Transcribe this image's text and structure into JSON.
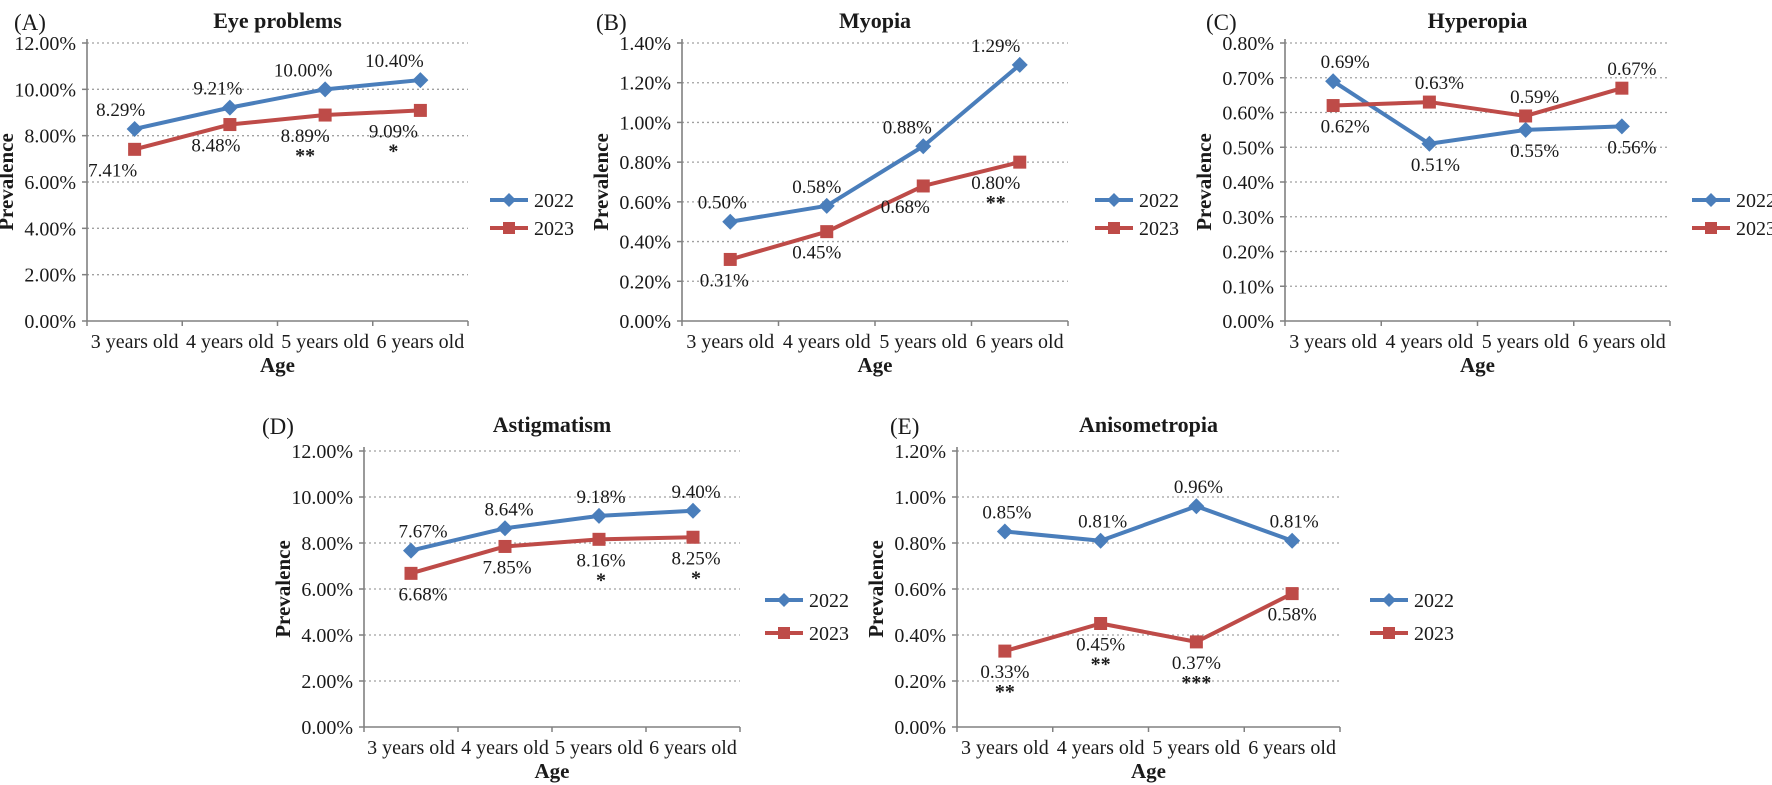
{
  "figure": {
    "background": "#ffffff",
    "axis_color": "#808080",
    "grid_color": "#a0a0a0",
    "text_color": "#1a1a1a",
    "legend_labels": [
      "2022",
      "2023"
    ],
    "series_colors": [
      "#4A7EBB",
      "#BE4B48"
    ]
  },
  "chart_data": [
    {
      "id": "A",
      "panel_label": "(A)",
      "title": "Eye problems",
      "type": "line",
      "xlabel": "Age",
      "ylabel": "Prevalence",
      "categories": [
        "3 years old",
        "4 years old",
        "5 years old",
        "6 years old"
      ],
      "ylim": [
        0,
        12
      ],
      "yticks": [
        "0.00%",
        "2.00%",
        "4.00%",
        "6.00%",
        "8.00%",
        "10.00%",
        "12.00%"
      ],
      "grid": "horizontal-dashed",
      "legend_position": "right-middle",
      "series": [
        {
          "name": "2022",
          "color": "#4A7EBB",
          "marker": "diamond",
          "values": [
            8.29,
            9.21,
            10.0,
            10.4
          ],
          "labels": [
            "8.29%",
            "9.21%",
            "10.00%",
            "10.40%"
          ],
          "label_side": [
            "above",
            "above",
            "above",
            "above"
          ],
          "asterisks": [
            "",
            "",
            "",
            ""
          ],
          "label_dx": [
            -14,
            -12,
            -22,
            -26
          ]
        },
        {
          "name": "2023",
          "color": "#BE4B48",
          "marker": "square",
          "values": [
            7.41,
            8.48,
            8.89,
            9.09
          ],
          "labels": [
            "7.41%",
            "8.48%",
            "8.89%",
            "9.09%"
          ],
          "label_side": [
            "below",
            "below",
            "below",
            "below"
          ],
          "asterisks": [
            "",
            "",
            "**",
            "*"
          ],
          "label_dx": [
            -22,
            -14,
            -20,
            -27
          ]
        }
      ]
    },
    {
      "id": "B",
      "panel_label": "(B)",
      "title": "Myopia",
      "type": "line",
      "xlabel": "Age",
      "ylabel": "Prevalence",
      "categories": [
        "3 years old",
        "4 years old",
        "5 years old",
        "6 years old"
      ],
      "ylim": [
        0,
        1.4
      ],
      "yticks": [
        "0.00%",
        "0.20%",
        "0.40%",
        "0.60%",
        "0.80%",
        "1.00%",
        "1.20%",
        "1.40%"
      ],
      "grid": "horizontal-dashed",
      "legend_position": "right-middle",
      "series": [
        {
          "name": "2022",
          "color": "#4A7EBB",
          "marker": "diamond",
          "values": [
            0.5,
            0.58,
            0.88,
            1.29
          ],
          "labels": [
            "0.50%",
            "0.58%",
            "0.88%",
            "1.29%"
          ],
          "label_side": [
            "above",
            "above",
            "above",
            "above"
          ],
          "asterisks": [
            "",
            "",
            "",
            ""
          ],
          "label_dx": [
            -8,
            -10,
            -16,
            -24
          ]
        },
        {
          "name": "2023",
          "color": "#BE4B48",
          "marker": "square",
          "values": [
            0.31,
            0.45,
            0.68,
            0.8
          ],
          "labels": [
            "0.31%",
            "0.45%",
            "0.68%",
            "0.80%"
          ],
          "label_side": [
            "below",
            "below",
            "below",
            "below"
          ],
          "asterisks": [
            "",
            "",
            "",
            "**"
          ],
          "label_dx": [
            -6,
            -10,
            -18,
            -24
          ]
        }
      ]
    },
    {
      "id": "C",
      "panel_label": "(C)",
      "title": "Hyperopia",
      "type": "line",
      "xlabel": "Age",
      "ylabel": "Prevalence",
      "categories": [
        "3 years old",
        "4 years old",
        "5 years old",
        "6 years old"
      ],
      "ylim": [
        0,
        0.8
      ],
      "yticks": [
        "0.00%",
        "0.10%",
        "0.20%",
        "0.30%",
        "0.40%",
        "0.50%",
        "0.60%",
        "0.70%",
        "0.80%"
      ],
      "grid": "horizontal-dashed",
      "legend_position": "right-middle",
      "series": [
        {
          "name": "2022",
          "color": "#4A7EBB",
          "marker": "diamond",
          "values": [
            0.69,
            0.51,
            0.55,
            0.56
          ],
          "labels": [
            "0.69%",
            "0.51%",
            "0.55%",
            "0.56%"
          ],
          "label_side": [
            "above",
            "below",
            "below",
            "below"
          ],
          "asterisks": [
            "",
            "",
            "",
            ""
          ],
          "label_dx": [
            12,
            6,
            9,
            10
          ]
        },
        {
          "name": "2023",
          "color": "#BE4B48",
          "marker": "square",
          "values": [
            0.62,
            0.63,
            0.59,
            0.67
          ],
          "labels": [
            "0.62%",
            "0.63%",
            "0.59%",
            "0.67%"
          ],
          "label_side": [
            "below",
            "above",
            "above",
            "above"
          ],
          "asterisks": [
            "",
            "",
            "",
            ""
          ],
          "label_dx": [
            12,
            10,
            9,
            10
          ]
        }
      ]
    },
    {
      "id": "D",
      "panel_label": "(D)",
      "title": "Astigmatism",
      "type": "line",
      "xlabel": "Age",
      "ylabel": "Prevalence",
      "categories": [
        "3 years old",
        "4 years old",
        "5 years old",
        "6 years old"
      ],
      "ylim": [
        0,
        12
      ],
      "yticks": [
        "0.00%",
        "2.00%",
        "4.00%",
        "6.00%",
        "8.00%",
        "10.00%",
        "12.00%"
      ],
      "grid": "horizontal-dashed",
      "legend_position": "right-middle",
      "series": [
        {
          "name": "2022",
          "color": "#4A7EBB",
          "marker": "diamond",
          "values": [
            7.67,
            8.64,
            9.18,
            9.4
          ],
          "labels": [
            "7.67%",
            "8.64%",
            "9.18%",
            "9.40%"
          ],
          "label_side": [
            "above",
            "above",
            "above",
            "above"
          ],
          "asterisks": [
            "",
            "",
            "",
            ""
          ],
          "label_dx": [
            12,
            4,
            2,
            3
          ]
        },
        {
          "name": "2023",
          "color": "#BE4B48",
          "marker": "square",
          "values": [
            6.68,
            7.85,
            8.16,
            8.25
          ],
          "labels": [
            "6.68%",
            "7.85%",
            "8.16%",
            "8.25%"
          ],
          "label_side": [
            "below",
            "below",
            "below",
            "below"
          ],
          "asterisks": [
            "",
            "",
            "*",
            "*"
          ],
          "label_dx": [
            12,
            2,
            2,
            3
          ]
        }
      ]
    },
    {
      "id": "E",
      "panel_label": "(E)",
      "title": "Anisometropia",
      "type": "line",
      "xlabel": "Age",
      "ylabel": "Prevalence",
      "categories": [
        "3 years old",
        "4 years old",
        "5 years old",
        "6 years old"
      ],
      "ylim": [
        0,
        1.2
      ],
      "yticks": [
        "0.00%",
        "0.20%",
        "0.40%",
        "0.60%",
        "0.80%",
        "1.00%",
        "1.20%"
      ],
      "grid": "horizontal-dashed",
      "legend_position": "right-middle",
      "series": [
        {
          "name": "2022",
          "color": "#4A7EBB",
          "marker": "diamond",
          "values": [
            0.85,
            0.81,
            0.96,
            0.81
          ],
          "labels": [
            "0.85%",
            "0.81%",
            "0.96%",
            "0.81%"
          ],
          "label_side": [
            "above",
            "above",
            "above",
            "above"
          ],
          "asterisks": [
            "",
            "",
            "",
            ""
          ],
          "label_dx": [
            2,
            2,
            2,
            2
          ]
        },
        {
          "name": "2023",
          "color": "#BE4B48",
          "marker": "square",
          "values": [
            0.33,
            0.45,
            0.37,
            0.58
          ],
          "labels": [
            "0.33%",
            "0.45%",
            "0.37%",
            "0.58%"
          ],
          "label_side": [
            "below",
            "below",
            "below",
            "below"
          ],
          "asterisks": [
            "**",
            "**",
            "***",
            ""
          ],
          "label_dx": [
            0,
            0,
            0,
            0
          ]
        }
      ]
    }
  ]
}
